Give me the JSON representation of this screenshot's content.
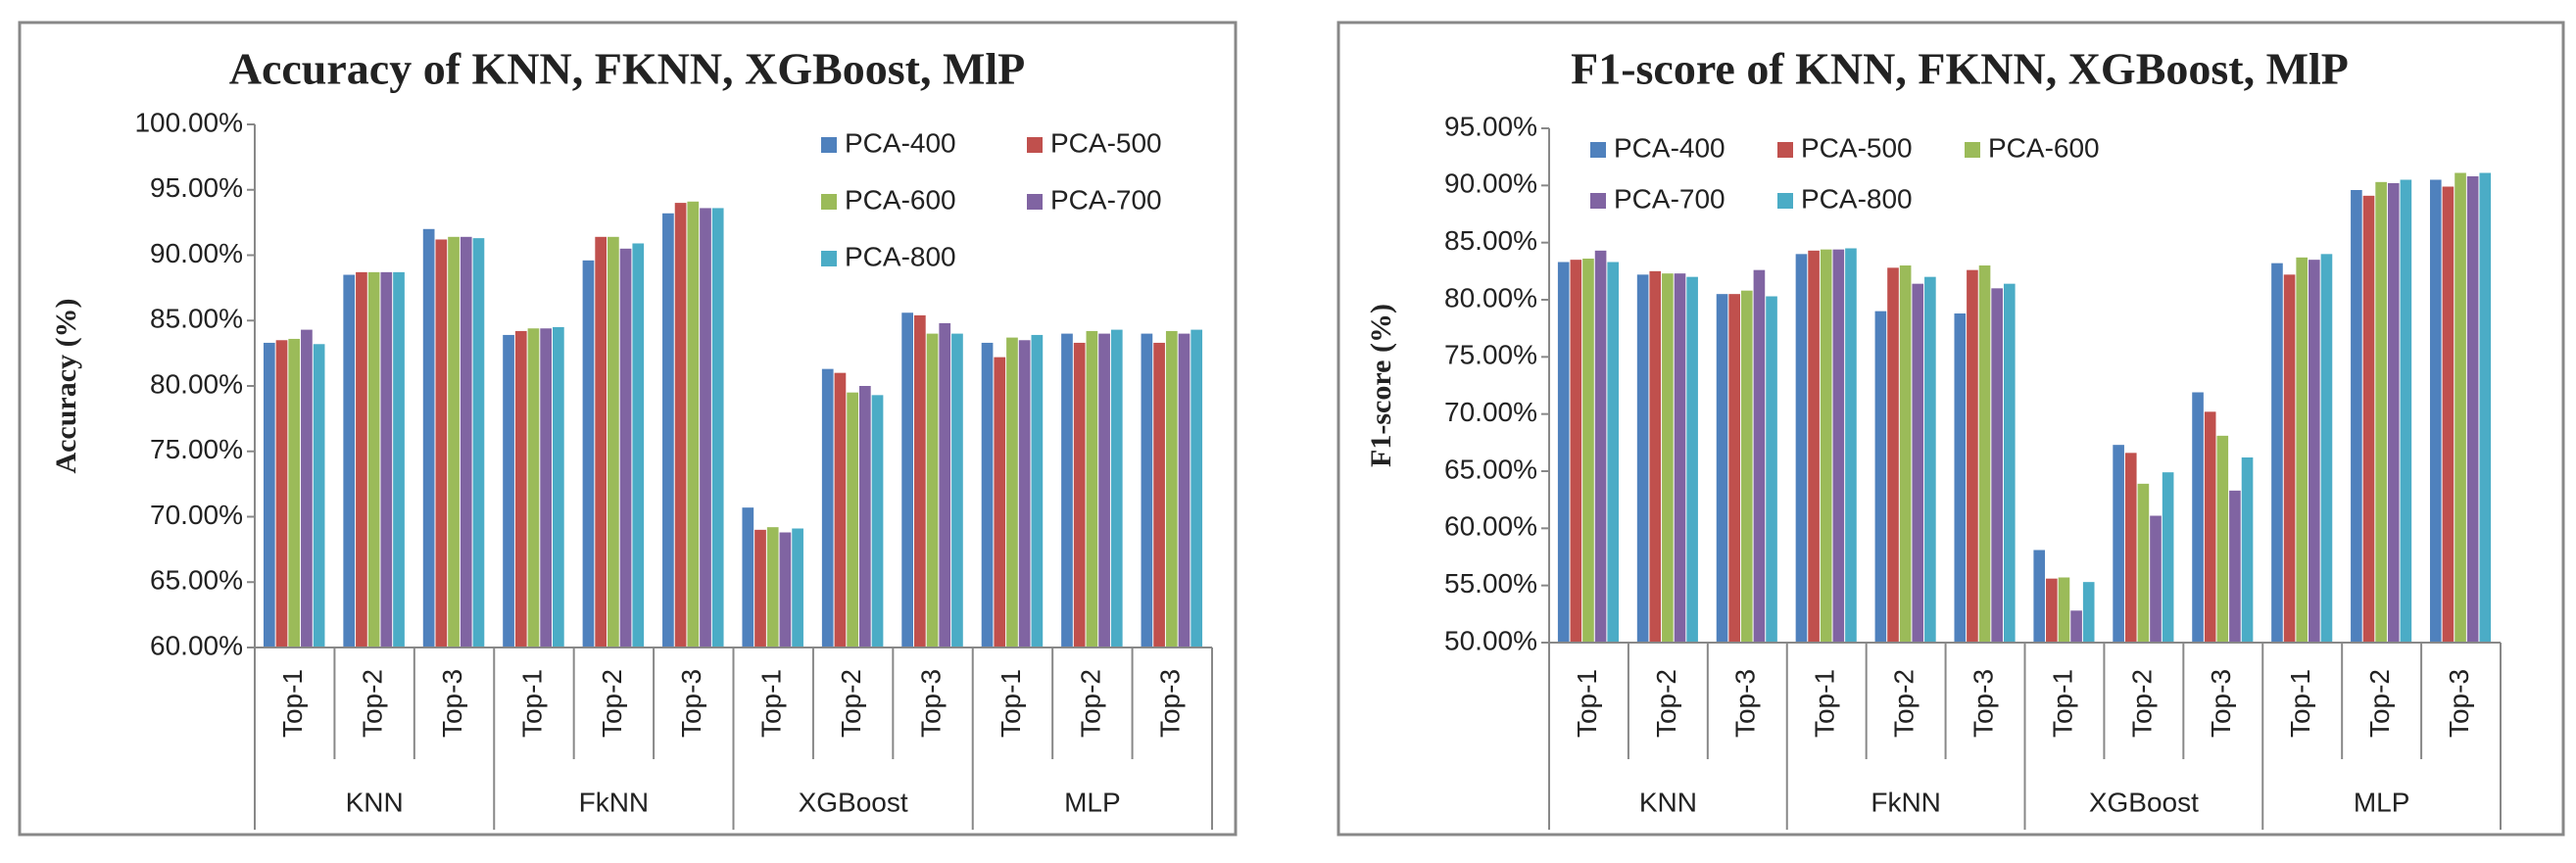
{
  "chart_data": [
    {
      "type": "bar",
      "title": "Accuracy  of KNN, FKNN, XGBoost, MlP",
      "ylabel": "Accuracy (%)",
      "categories": [
        "Top-1",
        "Top-2",
        "Top-3",
        "Top-1",
        "Top-2",
        "Top-3",
        "Top-1",
        "Top-2",
        "Top-3",
        "Top-1",
        "Top-2",
        "Top-3"
      ],
      "groups": [
        "KNN",
        "FkNN",
        "XGBoost",
        "MLP"
      ],
      "ylim": [
        60,
        100
      ],
      "yticks": [
        {
          "value": 60,
          "label": "60.00%"
        },
        {
          "value": 65,
          "label": "65.00%"
        },
        {
          "value": 70,
          "label": "70.00%"
        },
        {
          "value": 75,
          "label": "75.00%"
        },
        {
          "value": 80,
          "label": "80.00%"
        },
        {
          "value": 85,
          "label": "85.00%"
        },
        {
          "value": 90,
          "label": "90.00%"
        },
        {
          "value": 95,
          "label": "95.00%"
        },
        {
          "value": 100,
          "label": "100.00%"
        }
      ],
      "legend": "upper right",
      "grid": false,
      "series": [
        {
          "name": "PCA-400",
          "color": "#4f81bd",
          "values": [
            83.3,
            88.5,
            92.0,
            83.9,
            89.6,
            93.2,
            70.7,
            81.3,
            85.6,
            83.3,
            84.0,
            84.0
          ]
        },
        {
          "name": "PCA-500",
          "color": "#c0504d",
          "values": [
            83.5,
            88.7,
            91.2,
            84.2,
            91.4,
            94.0,
            69.0,
            81.0,
            85.4,
            82.2,
            83.3,
            83.3
          ]
        },
        {
          "name": "PCA-600",
          "color": "#9bbb59",
          "values": [
            83.6,
            88.7,
            91.4,
            84.4,
            91.4,
            94.1,
            69.2,
            79.5,
            84.0,
            83.7,
            84.2,
            84.2
          ]
        },
        {
          "name": "PCA-700",
          "color": "#8064a2",
          "values": [
            84.3,
            88.7,
            91.4,
            84.4,
            90.5,
            93.6,
            68.8,
            80.0,
            84.8,
            83.5,
            84.0,
            84.0
          ]
        },
        {
          "name": "PCA-800",
          "color": "#4bacc6",
          "values": [
            83.2,
            88.7,
            91.3,
            84.5,
            90.9,
            93.6,
            69.1,
            79.3,
            84.0,
            83.9,
            84.3,
            84.3
          ]
        }
      ]
    },
    {
      "type": "bar",
      "title": "F1-score of KNN, FKNN, XGBoost, MlP",
      "ylabel": "F1-score (%)",
      "categories": [
        "Top-1",
        "Top-2",
        "Top-3",
        "Top-1",
        "Top-2",
        "Top-3",
        "Top-1",
        "Top-2",
        "Top-3",
        "Top-1",
        "Top-2",
        "Top-3"
      ],
      "groups": [
        "KNN",
        "FkNN",
        "XGBoost",
        "MLP"
      ],
      "ylim": [
        50,
        95
      ],
      "yticks": [
        {
          "value": 50,
          "label": "50.00%"
        },
        {
          "value": 55,
          "label": "55.00%"
        },
        {
          "value": 60,
          "label": "60.00%"
        },
        {
          "value": 65,
          "label": "65.00%"
        },
        {
          "value": 70,
          "label": "70.00%"
        },
        {
          "value": 75,
          "label": "75.00%"
        },
        {
          "value": 80,
          "label": "80.00%"
        },
        {
          "value": 85,
          "label": "85.00%"
        },
        {
          "value": 90,
          "label": "90.00%"
        },
        {
          "value": 95,
          "label": "95.00%"
        }
      ],
      "legend": "upper left",
      "grid": false,
      "series": [
        {
          "name": "PCA-400",
          "color": "#4f81bd",
          "values": [
            83.3,
            82.2,
            80.5,
            84.0,
            79.0,
            78.8,
            58.1,
            67.3,
            71.9,
            83.2,
            89.6,
            90.5
          ]
        },
        {
          "name": "PCA-500",
          "color": "#c0504d",
          "values": [
            83.5,
            82.5,
            80.5,
            84.3,
            82.8,
            82.6,
            55.6,
            66.6,
            70.2,
            82.2,
            89.1,
            89.9
          ]
        },
        {
          "name": "PCA-600",
          "color": "#9bbb59",
          "values": [
            83.6,
            82.3,
            80.8,
            84.4,
            83.0,
            83.0,
            55.7,
            63.9,
            68.1,
            83.7,
            90.3,
            91.1
          ]
        },
        {
          "name": "PCA-700",
          "color": "#8064a2",
          "values": [
            84.3,
            82.3,
            82.6,
            84.4,
            81.4,
            81.0,
            52.8,
            61.1,
            63.3,
            83.5,
            90.2,
            90.8
          ]
        },
        {
          "name": "PCA-800",
          "color": "#4bacc6",
          "values": [
            83.3,
            82.0,
            80.3,
            84.5,
            82.0,
            81.4,
            55.3,
            64.9,
            66.2,
            84.0,
            90.5,
            91.1
          ]
        }
      ]
    }
  ]
}
